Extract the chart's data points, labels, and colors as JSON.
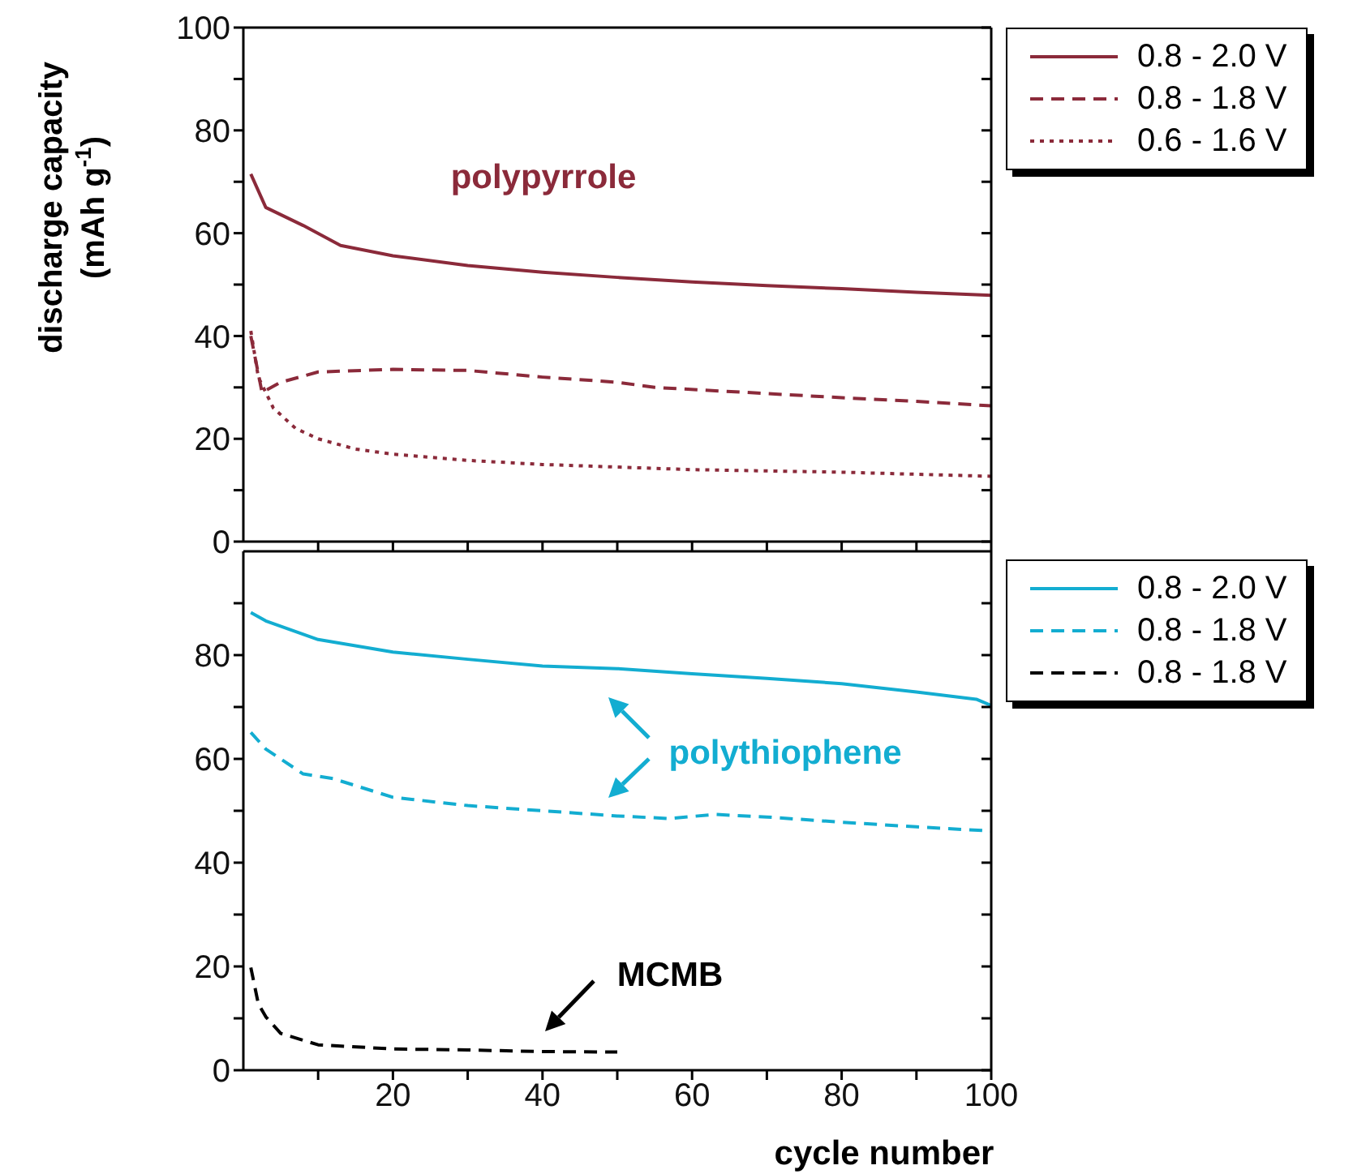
{
  "chart_data": [
    {
      "type": "line",
      "ylabel": "discharge capacity (mAh g$^{-1}$)",
      "xlim": [
        0,
        100
      ],
      "ylim": [
        0,
        100
      ],
      "xticks": [
        {
          "value": 10,
          "label": null
        },
        20,
        {
          "value": 30,
          "label": null
        },
        40,
        {
          "value": 50,
          "label": null
        },
        60,
        {
          "value": 70,
          "label": null
        },
        80,
        {
          "value": 90,
          "label": null
        },
        100
      ],
      "yticks": [
        0,
        {
          "value": 10,
          "label": null
        },
        20,
        {
          "value": 30,
          "label": null
        },
        40,
        {
          "value": 50,
          "label": null
        },
        60,
        {
          "value": 70,
          "label": null
        },
        80,
        {
          "value": 90,
          "label": null
        },
        100
      ],
      "tick_labels": "y",
      "legend": "top right",
      "marker": "none",
      "annotations": [
        "polypyrrole"
      ],
      "series": [
        {
          "name": "0.8 - 2.0 V",
          "color": "#8b2a3a",
          "line_style": "solid",
          "x": [
            1,
            3,
            8,
            13,
            20,
            30,
            40,
            50,
            60,
            70,
            80,
            90,
            100
          ],
          "values": [
            71.5,
            65,
            61.5,
            57.6,
            55.6,
            53.7,
            52.4,
            51.4,
            50.5,
            49.8,
            49.2,
            48.5,
            47.9
          ]
        },
        {
          "name": "0.8 - 1.8 V",
          "color": "#8b2a3a",
          "line_style": "dashed",
          "x": [
            1,
            2.5,
            5,
            10,
            20,
            30,
            40,
            50,
            55,
            70,
            80,
            90,
            100
          ],
          "values": [
            40,
            29,
            31,
            33,
            33.5,
            33.3,
            32,
            31,
            30,
            28.8,
            28,
            27.3,
            26.4
          ]
        },
        {
          "name": "0.6 - 1.6 V",
          "color": "#8b2a3a",
          "line_style": "dotted",
          "x": [
            1,
            2,
            4,
            7,
            10,
            15,
            20,
            30,
            40,
            50,
            60,
            80,
            100
          ],
          "values": [
            41,
            32,
            26,
            22,
            20,
            18,
            17,
            15.8,
            15,
            14.5,
            14,
            13.5,
            12.7
          ]
        }
      ]
    },
    {
      "type": "line",
      "xlabel": "cycle number",
      "xlim": [
        0,
        100
      ],
      "ylim": [
        0,
        100
      ],
      "xticks": [
        {
          "value": 10,
          "label": null
        },
        20,
        {
          "value": 30,
          "label": null
        },
        40,
        {
          "value": 50,
          "label": null
        },
        60,
        {
          "value": 70,
          "label": null
        },
        80,
        {
          "value": 90,
          "label": null
        },
        100
      ],
      "yticks": [
        0,
        {
          "value": 10,
          "label": null
        },
        20,
        {
          "value": 30,
          "label": null
        },
        40,
        {
          "value": 50,
          "label": null
        },
        60,
        {
          "value": 70,
          "label": null
        },
        80,
        {
          "value": 90,
          "label": null
        }
      ],
      "legend": "top right",
      "marker": "none",
      "annotations": [
        "polythiophene",
        "MCMB"
      ],
      "series": [
        {
          "name": "0.8 - 2.0 V",
          "color": "#13add1",
          "line_style": "solid",
          "x": [
            1,
            3,
            10,
            20,
            30,
            40,
            50,
            60,
            70,
            80,
            90,
            98,
            100
          ],
          "values": [
            88.2,
            86.6,
            83,
            80.6,
            79.2,
            77.9,
            77.4,
            76.4,
            75.5,
            74.5,
            72.9,
            71.5,
            70.3
          ]
        },
        {
          "name": "0.8 - 1.8 V",
          "color": "#13add1",
          "line_style": "dashed",
          "x": [
            1,
            3,
            8,
            12,
            20,
            30,
            40,
            50,
            57,
            63,
            70,
            80,
            90,
            100
          ],
          "values": [
            65.1,
            61.9,
            57.1,
            56.2,
            52.6,
            51,
            50,
            49,
            48.5,
            49.3,
            48.8,
            47.8,
            46.9,
            46.1
          ]
        },
        {
          "name": "0.8 - 1.8 V",
          "color": "#000000",
          "line_style": "dashed",
          "x": [
            1,
            2,
            3,
            5,
            10,
            20,
            30,
            40,
            50
          ],
          "values": [
            19.8,
            12.8,
            10.3,
            7.1,
            4.9,
            4.1,
            3.9,
            3.6,
            3.5
          ]
        }
      ]
    }
  ]
}
